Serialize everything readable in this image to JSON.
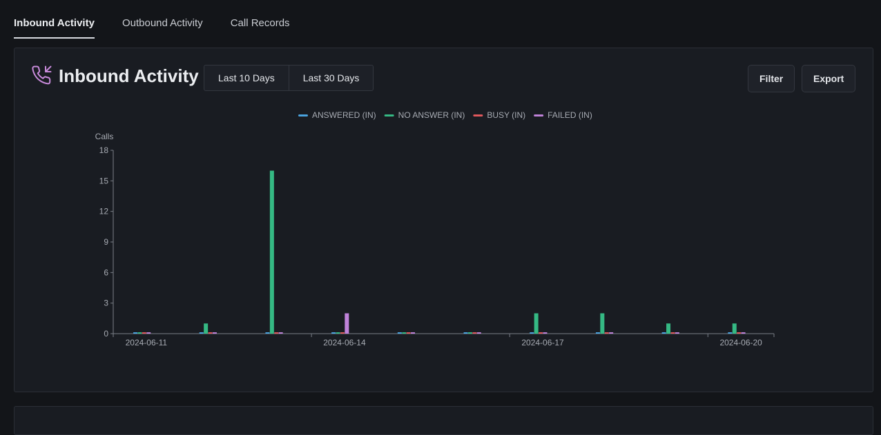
{
  "tabs": [
    {
      "label": "Inbound Activity",
      "active": true
    },
    {
      "label": "Outbound Activity",
      "active": false
    },
    {
      "label": "Call Records",
      "active": false
    }
  ],
  "card": {
    "title": "Inbound Activity",
    "title_icon": "phone-incoming-icon",
    "range_buttons": [
      "Last 10 Days",
      "Last 30 Days"
    ],
    "filter_label": "Filter",
    "export_label": "Export"
  },
  "colors": {
    "accent_icon": "#c98bdc",
    "answered": "#4aa3df",
    "no_answer": "#35b984",
    "busy": "#e0585c",
    "failed": "#bf82d9"
  },
  "chart_data": {
    "type": "bar",
    "ylabel": "Calls",
    "ylim": [
      0,
      18
    ],
    "yticks": [
      0,
      3,
      6,
      9,
      12,
      15,
      18
    ],
    "x": [
      "2024-06-11",
      "2024-06-12",
      "2024-06-13",
      "2024-06-14",
      "2024-06-15",
      "2024-06-16",
      "2024-06-17",
      "2024-06-18",
      "2024-06-19",
      "2024-06-20"
    ],
    "xtick_labels": [
      "2024-06-11",
      "2024-06-14",
      "2024-06-17",
      "2024-06-20"
    ],
    "legend_position": "top-center",
    "series": [
      {
        "name": "ANSWERED (IN)",
        "color": "#4aa3df",
        "values": [
          0,
          0,
          0,
          0,
          0,
          0,
          0,
          0,
          0,
          0
        ]
      },
      {
        "name": "NO ANSWER (IN)",
        "color": "#35b984",
        "values": [
          0,
          1,
          16,
          0,
          0,
          0,
          2,
          2,
          1,
          1
        ]
      },
      {
        "name": "BUSY (IN)",
        "color": "#e0585c",
        "values": [
          0,
          0,
          0,
          0,
          0,
          0,
          0,
          0,
          0,
          0
        ]
      },
      {
        "name": "FAILED (IN)",
        "color": "#bf82d9",
        "values": [
          0,
          0,
          0,
          2,
          0,
          0,
          0,
          0,
          0,
          0
        ]
      }
    ]
  }
}
